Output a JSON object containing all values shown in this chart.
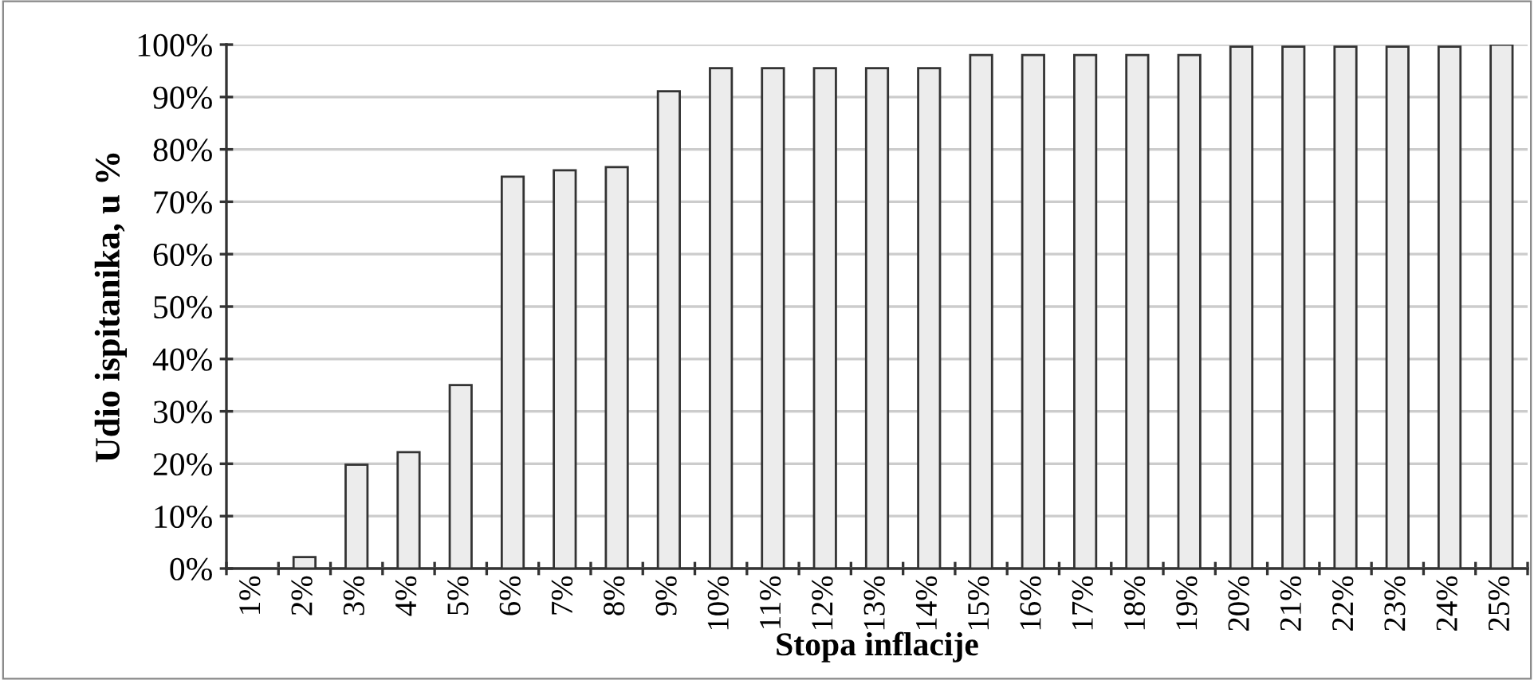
{
  "chart_data": {
    "type": "bar",
    "xlabel": "Stopa inflacije",
    "ylabel": "Udio ispitanika, u %",
    "categories": [
      "1%",
      "2%",
      "3%",
      "4%",
      "5%",
      "6%",
      "7%",
      "8%",
      "9%",
      "10%",
      "11%",
      "12%",
      "13%",
      "14%",
      "15%",
      "16%",
      "17%",
      "18%",
      "19%",
      "20%",
      "21%",
      "22%",
      "23%",
      "24%",
      "25%"
    ],
    "values": [
      0,
      2.2,
      19.8,
      22.2,
      35,
      74.8,
      76,
      76.6,
      91.1,
      95.5,
      95.5,
      95.5,
      95.5,
      95.5,
      98,
      98,
      98,
      98,
      98,
      99.6,
      99.6,
      99.6,
      99.6,
      99.6,
      100
    ],
    "color": "#ececec",
    "ylim": [
      0,
      100
    ],
    "yticks": [
      {
        "value": 0,
        "label": "0%"
      },
      {
        "value": 10,
        "label": "10%"
      },
      {
        "value": 20,
        "label": "20%"
      },
      {
        "value": 30,
        "label": "30%"
      },
      {
        "value": 40,
        "label": "40%"
      },
      {
        "value": 50,
        "label": "50%"
      },
      {
        "value": 60,
        "label": "60%"
      },
      {
        "value": 70,
        "label": "70%"
      },
      {
        "value": 80,
        "label": "80%"
      },
      {
        "value": 90,
        "label": "90%"
      },
      {
        "value": 100,
        "label": "100%"
      }
    ],
    "grid": "y"
  }
}
